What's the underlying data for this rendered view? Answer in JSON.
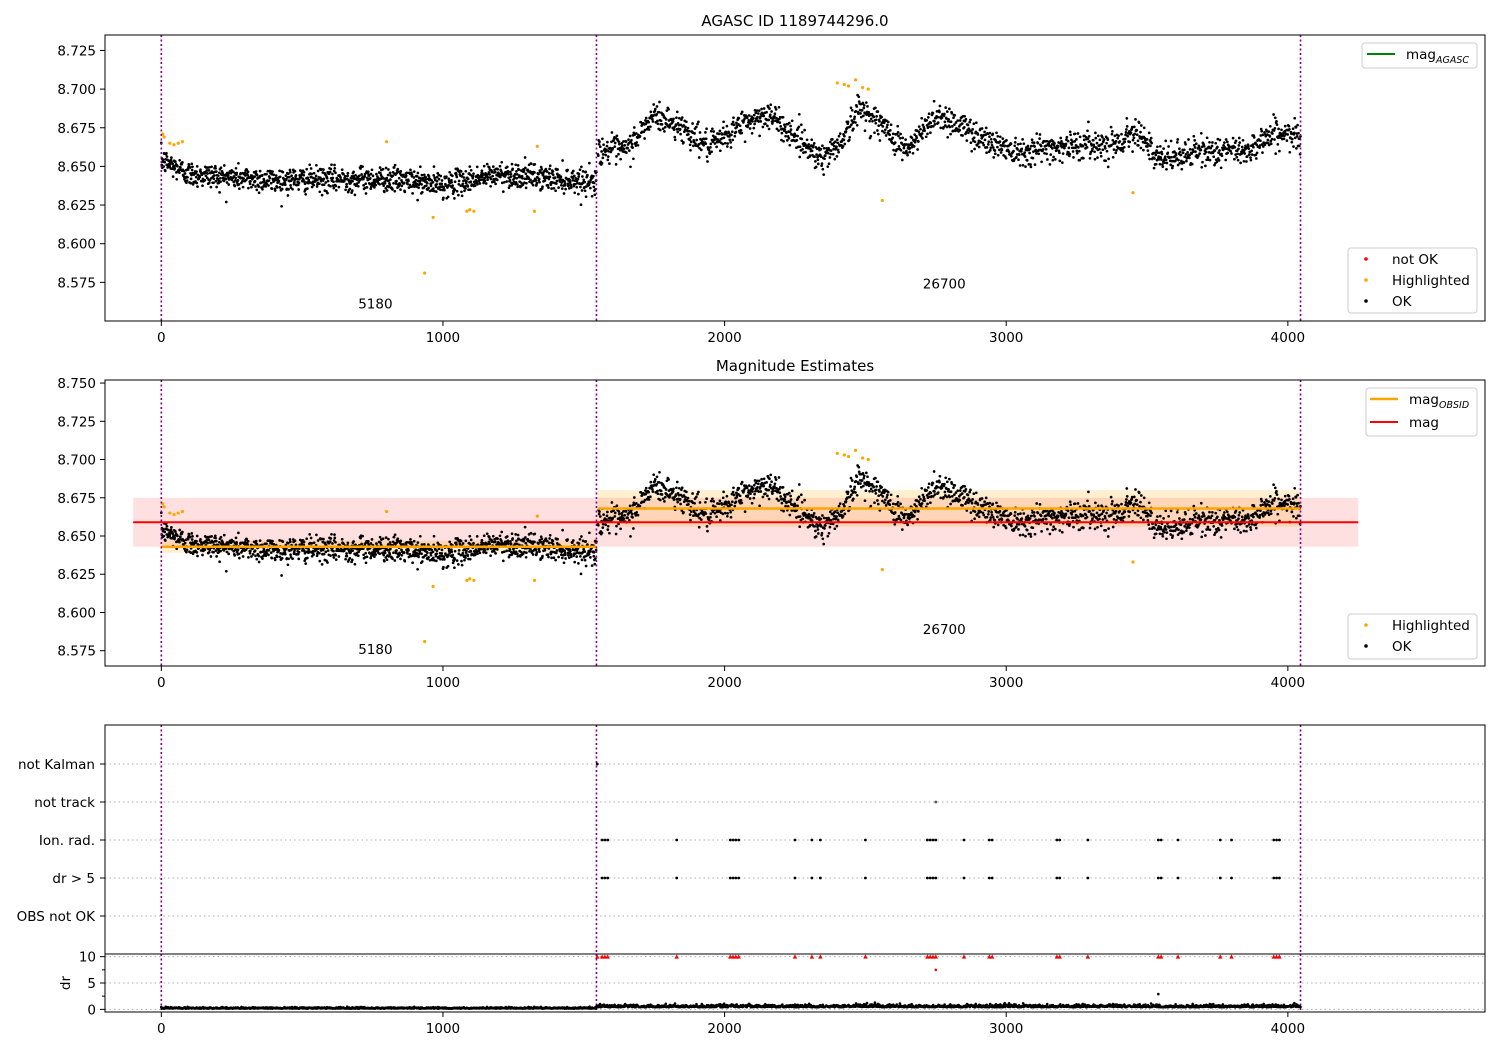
{
  "chart_data": [
    {
      "type": "scatter",
      "title": "AGASC ID 1189744296.0",
      "xlim": [
        -200,
        4700
      ],
      "ylim": [
        8.55,
        8.735
      ],
      "xticks": [
        "0",
        "1000",
        "2000",
        "3000",
        "4000"
      ],
      "xtick_values": [
        0,
        1000,
        2000,
        3000,
        4000
      ],
      "yticks": [
        "8.575",
        "8.600",
        "8.625",
        "8.650",
        "8.675",
        "8.700",
        "8.725"
      ],
      "ytick_values": [
        8.575,
        8.6,
        8.625,
        8.65,
        8.675,
        8.7,
        8.725
      ],
      "obs_boundaries": [
        0,
        1545,
        4045
      ],
      "obs_labels": [
        {
          "text": "5180",
          "x": 760,
          "y": 8.558
        },
        {
          "text": "26700",
          "x": 2780,
          "y": 8.571
        }
      ],
      "segments": [
        {
          "x0": 0,
          "x1": 1545,
          "base": 8.643,
          "trend": [
            [
              0,
              8.654
            ],
            [
              100,
              8.645
            ],
            [
              400,
              8.641
            ],
            [
              800,
              8.642
            ],
            [
              1000,
              8.638
            ],
            [
              1200,
              8.645
            ],
            [
              1545,
              8.64
            ]
          ],
          "noise": 0.0065,
          "count": 1300
        },
        {
          "x0": 1550,
          "x1": 4045,
          "base": 8.668,
          "trend": [
            [
              1550,
              8.661
            ],
            [
              1650,
              8.66
            ],
            [
              1750,
              8.683
            ],
            [
              1850,
              8.675
            ],
            [
              1950,
              8.662
            ],
            [
              2050,
              8.676
            ],
            [
              2150,
              8.684
            ],
            [
              2250,
              8.67
            ],
            [
              2350,
              8.655
            ],
            [
              2420,
              8.668
            ],
            [
              2480,
              8.688
            ],
            [
              2550,
              8.678
            ],
            [
              2650,
              8.66
            ],
            [
              2750,
              8.684
            ],
            [
              2850,
              8.675
            ],
            [
              2950,
              8.665
            ],
            [
              3050,
              8.66
            ],
            [
              3200,
              8.663
            ],
            [
              3400,
              8.665
            ],
            [
              3470,
              8.675
            ],
            [
              3530,
              8.654
            ],
            [
              3700,
              8.66
            ],
            [
              3850,
              8.66
            ],
            [
              3950,
              8.672
            ],
            [
              4045,
              8.668
            ]
          ],
          "noise": 0.0075,
          "count": 1700
        }
      ],
      "highlighted_points": [
        [
          5,
          8.671
        ],
        [
          10,
          8.669
        ],
        [
          30,
          8.665
        ],
        [
          45,
          8.664
        ],
        [
          60,
          8.665
        ],
        [
          75,
          8.666
        ],
        [
          800,
          8.666
        ],
        [
          935,
          8.581
        ],
        [
          965,
          8.617
        ],
        [
          1085,
          8.621
        ],
        [
          1095,
          8.622
        ],
        [
          1110,
          8.621
        ],
        [
          1325,
          8.621
        ],
        [
          1335,
          8.663
        ],
        [
          2400,
          8.704
        ],
        [
          2425,
          8.703
        ],
        [
          2440,
          8.702
        ],
        [
          2465,
          8.706
        ],
        [
          2490,
          8.701
        ],
        [
          2510,
          8.7
        ],
        [
          2560,
          8.628
        ],
        [
          3450,
          8.633
        ]
      ],
      "legend_top": {
        "placement": "upper right",
        "entries": [
          {
            "label": "mag",
            "subscript": "AGASC",
            "color": "#008000",
            "marker": "line"
          }
        ]
      },
      "legend_bottom": {
        "placement": "lower right",
        "entries": [
          {
            "label": "not OK",
            "color": "#ff0000",
            "marker": "dot"
          },
          {
            "label": "Highlighted",
            "color": "#ffa500",
            "marker": "dot"
          },
          {
            "label": "OK",
            "color": "#000000",
            "marker": "dot"
          }
        ]
      }
    },
    {
      "type": "scatter",
      "title": "Magnitude Estimates",
      "xlim": [
        -200,
        4700
      ],
      "ylim": [
        8.565,
        8.752
      ],
      "xticks": [
        "0",
        "1000",
        "2000",
        "3000",
        "4000"
      ],
      "xtick_values": [
        0,
        1000,
        2000,
        3000,
        4000
      ],
      "yticks": [
        "8.575",
        "8.600",
        "8.625",
        "8.650",
        "8.675",
        "8.700",
        "8.725",
        "8.750"
      ],
      "ytick_values": [
        8.575,
        8.6,
        8.625,
        8.65,
        8.675,
        8.7,
        8.725,
        8.75
      ],
      "obs_boundaries": [
        0,
        1545,
        4045
      ],
      "obs_labels": [
        {
          "text": "5180",
          "x": 760,
          "y": 8.573
        },
        {
          "text": "26700",
          "x": 2780,
          "y": 8.586
        }
      ],
      "mag_line": {
        "value": 8.659,
        "band": [
          8.643,
          8.675
        ],
        "x0": -100,
        "x1": 4250,
        "color": "#ff0000"
      },
      "mag_obsid": [
        {
          "x0": 0,
          "x1": 1545,
          "value": 8.643,
          "band": [
            8.639,
            8.647
          ]
        },
        {
          "x0": 1550,
          "x1": 4045,
          "value": 8.668,
          "band": [
            8.656,
            8.68
          ]
        }
      ],
      "legend_top": {
        "placement": "upper right",
        "entries": [
          {
            "label": "mag",
            "subscript": "OBSID",
            "color": "#ffa500",
            "marker": "line"
          },
          {
            "label": "mag",
            "subscript": "",
            "color": "#ff0000",
            "marker": "line"
          }
        ]
      },
      "legend_bottom": {
        "placement": "lower right",
        "entries": [
          {
            "label": "Highlighted",
            "color": "#ffa500",
            "marker": "dot"
          },
          {
            "label": "OK",
            "color": "#000000",
            "marker": "dot"
          }
        ]
      }
    },
    {
      "type": "scatter",
      "xlim": [
        -200,
        4700
      ],
      "flag_categories": [
        "not Kalman",
        "not track",
        "Ion. rad.",
        "dr > 5",
        "OBS not OK"
      ],
      "flag_points": {
        "not Kalman": [
          1548
        ],
        "not track": [
          2750
        ],
        "Ion. rad.": [
          1565,
          1575,
          1585,
          1830,
          2020,
          2030,
          2040,
          2050,
          2250,
          2310,
          2340,
          2500,
          2720,
          2730,
          2740,
          2750,
          2850,
          2940,
          2950,
          3180,
          3190,
          3290,
          3540,
          3550,
          3610,
          3760,
          3800,
          3950,
          3960,
          3970
        ],
        "dr > 5": [
          1565,
          1575,
          1585,
          1830,
          2020,
          2030,
          2040,
          2050,
          2250,
          2310,
          2340,
          2500,
          2720,
          2730,
          2740,
          2750,
          2850,
          2940,
          2950,
          3180,
          3190,
          3290,
          3540,
          3550,
          3610,
          3760,
          3800,
          3950,
          3960,
          3970
        ],
        "OBS not OK": []
      },
      "obs_boundaries": [
        0,
        1545,
        4045
      ]
    },
    {
      "type": "scatter",
      "ylabel": "dr",
      "xlim": [
        -200,
        4700
      ],
      "ylim": [
        -0.5,
        10.5
      ],
      "xticks": [
        "0",
        "1000",
        "2000",
        "3000",
        "4000"
      ],
      "xtick_values": [
        0,
        1000,
        2000,
        3000,
        4000
      ],
      "yticks": [
        "0",
        "5",
        "10"
      ],
      "ytick_values": [
        0,
        5,
        10
      ],
      "capped_points": [
        1548,
        1565,
        1575,
        1585,
        1830,
        2020,
        2030,
        2040,
        2050,
        2250,
        2310,
        2340,
        2500,
        2720,
        2730,
        2740,
        2750,
        2850,
        2940,
        2950,
        3180,
        3190,
        3290,
        3540,
        3550,
        3610,
        3760,
        3800,
        3950,
        3960,
        3970
      ],
      "outliers": [
        [
          2750,
          7.5
        ],
        [
          3540,
          2.9
        ]
      ],
      "obs_boundaries": [
        0,
        1545,
        4045
      ]
    }
  ]
}
